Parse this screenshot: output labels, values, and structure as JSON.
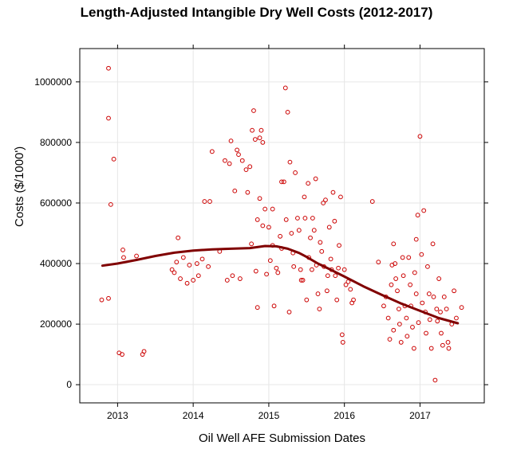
{
  "chart_data": {
    "type": "scatter",
    "title": "Length-Adjusted Intangible Dry Well Costs (2012-2017)",
    "xlabel": "Oil Well AFE Submission Dates",
    "ylabel": "Costs ($/1000')",
    "xlim": [
      2012.5,
      2017.85
    ],
    "ylim": [
      -60000,
      1110000
    ],
    "x_ticks": [
      2013,
      2014,
      2015,
      2016,
      2017
    ],
    "x_tick_labels": [
      "2013",
      "2014",
      "2015",
      "2016",
      "2017"
    ],
    "y_ticks": [
      0,
      200000,
      400000,
      600000,
      800000,
      1000000
    ],
    "y_tick_labels": [
      "0",
      "200000",
      "400000",
      "600000",
      "800000",
      "1000000"
    ],
    "grid": true,
    "colors": {
      "points": "#cc0000",
      "smooth": "#800000",
      "grid": "#e6e6e6"
    },
    "series": [
      {
        "kind": "points",
        "points": [
          [
            2012.79,
            280000
          ],
          [
            2012.88,
            1045000
          ],
          [
            2012.88,
            880000
          ],
          [
            2012.88,
            285000
          ],
          [
            2012.91,
            595000
          ],
          [
            2012.95,
            745000
          ],
          [
            2013.02,
            105000
          ],
          [
            2013.06,
            100000
          ],
          [
            2013.07,
            445000
          ],
          [
            2013.08,
            420000
          ],
          [
            2013.25,
            425000
          ],
          [
            2013.33,
            100000
          ],
          [
            2013.35,
            110000
          ],
          [
            2013.72,
            380000
          ],
          [
            2013.75,
            370000
          ],
          [
            2013.78,
            405000
          ],
          [
            2013.8,
            485000
          ],
          [
            2013.83,
            350000
          ],
          [
            2013.87,
            420000
          ],
          [
            2013.92,
            335000
          ],
          [
            2013.95,
            395000
          ],
          [
            2014.0,
            345000
          ],
          [
            2014.05,
            400000
          ],
          [
            2014.07,
            360000
          ],
          [
            2014.12,
            415000
          ],
          [
            2014.15,
            605000
          ],
          [
            2014.2,
            390000
          ],
          [
            2014.22,
            605000
          ],
          [
            2014.25,
            770000
          ],
          [
            2014.35,
            440000
          ],
          [
            2014.42,
            740000
          ],
          [
            2014.45,
            345000
          ],
          [
            2014.48,
            730000
          ],
          [
            2014.5,
            805000
          ],
          [
            2014.52,
            360000
          ],
          [
            2014.55,
            640000
          ],
          [
            2014.58,
            775000
          ],
          [
            2014.6,
            760000
          ],
          [
            2014.62,
            350000
          ],
          [
            2014.65,
            740000
          ],
          [
            2014.7,
            710000
          ],
          [
            2014.72,
            635000
          ],
          [
            2014.75,
            720000
          ],
          [
            2014.77,
            465000
          ],
          [
            2014.78,
            840000
          ],
          [
            2014.8,
            905000
          ],
          [
            2014.82,
            810000
          ],
          [
            2014.83,
            375000
          ],
          [
            2014.85,
            545000
          ],
          [
            2014.85,
            255000
          ],
          [
            2014.88,
            815000
          ],
          [
            2014.88,
            615000
          ],
          [
            2014.9,
            840000
          ],
          [
            2014.92,
            800000
          ],
          [
            2014.92,
            525000
          ],
          [
            2014.95,
            580000
          ],
          [
            2014.97,
            365000
          ],
          [
            2015.0,
            520000
          ],
          [
            2015.02,
            410000
          ],
          [
            2015.05,
            580000
          ],
          [
            2015.05,
            460000
          ],
          [
            2015.07,
            260000
          ],
          [
            2015.1,
            385000
          ],
          [
            2015.12,
            370000
          ],
          [
            2015.15,
            490000
          ],
          [
            2015.17,
            670000
          ],
          [
            2015.17,
            450000
          ],
          [
            2015.2,
            670000
          ],
          [
            2015.22,
            980000
          ],
          [
            2015.23,
            545000
          ],
          [
            2015.25,
            900000
          ],
          [
            2015.27,
            240000
          ],
          [
            2015.28,
            735000
          ],
          [
            2015.3,
            500000
          ],
          [
            2015.32,
            435000
          ],
          [
            2015.33,
            390000
          ],
          [
            2015.35,
            700000
          ],
          [
            2015.38,
            550000
          ],
          [
            2015.4,
            510000
          ],
          [
            2015.42,
            380000
          ],
          [
            2015.43,
            345000
          ],
          [
            2015.45,
            345000
          ],
          [
            2015.47,
            620000
          ],
          [
            2015.48,
            550000
          ],
          [
            2015.5,
            280000
          ],
          [
            2015.52,
            665000
          ],
          [
            2015.53,
            420000
          ],
          [
            2015.55,
            485000
          ],
          [
            2015.57,
            380000
          ],
          [
            2015.58,
            550000
          ],
          [
            2015.6,
            510000
          ],
          [
            2015.62,
            680000
          ],
          [
            2015.63,
            395000
          ],
          [
            2015.65,
            300000
          ],
          [
            2015.67,
            250000
          ],
          [
            2015.68,
            470000
          ],
          [
            2015.7,
            440000
          ],
          [
            2015.72,
            600000
          ],
          [
            2015.73,
            390000
          ],
          [
            2015.75,
            610000
          ],
          [
            2015.77,
            310000
          ],
          [
            2015.78,
            360000
          ],
          [
            2015.8,
            520000
          ],
          [
            2015.82,
            415000
          ],
          [
            2015.83,
            380000
          ],
          [
            2015.85,
            635000
          ],
          [
            2015.87,
            540000
          ],
          [
            2015.88,
            360000
          ],
          [
            2015.9,
            280000
          ],
          [
            2015.92,
            385000
          ],
          [
            2015.93,
            460000
          ],
          [
            2015.95,
            620000
          ],
          [
            2015.97,
            165000
          ],
          [
            2015.98,
            140000
          ],
          [
            2016.0,
            380000
          ],
          [
            2016.02,
            330000
          ],
          [
            2016.05,
            340000
          ],
          [
            2016.08,
            315000
          ],
          [
            2016.1,
            270000
          ],
          [
            2016.12,
            280000
          ],
          [
            2016.37,
            605000
          ],
          [
            2016.45,
            405000
          ],
          [
            2016.52,
            260000
          ],
          [
            2016.55,
            290000
          ],
          [
            2016.58,
            220000
          ],
          [
            2016.6,
            150000
          ],
          [
            2016.62,
            330000
          ],
          [
            2016.63,
            395000
          ],
          [
            2016.65,
            465000
          ],
          [
            2016.65,
            180000
          ],
          [
            2016.67,
            400000
          ],
          [
            2016.68,
            350000
          ],
          [
            2016.7,
            310000
          ],
          [
            2016.72,
            250000
          ],
          [
            2016.73,
            200000
          ],
          [
            2016.75,
            140000
          ],
          [
            2016.77,
            420000
          ],
          [
            2016.78,
            360000
          ],
          [
            2016.8,
            260000
          ],
          [
            2016.82,
            220000
          ],
          [
            2016.83,
            160000
          ],
          [
            2016.85,
            420000
          ],
          [
            2016.87,
            330000
          ],
          [
            2016.88,
            260000
          ],
          [
            2016.9,
            190000
          ],
          [
            2016.92,
            120000
          ],
          [
            2016.93,
            370000
          ],
          [
            2016.95,
            480000
          ],
          [
            2016.95,
            300000
          ],
          [
            2016.97,
            560000
          ],
          [
            2016.98,
            205000
          ],
          [
            2017.0,
            820000
          ],
          [
            2017.02,
            430000
          ],
          [
            2017.03,
            270000
          ],
          [
            2017.05,
            575000
          ],
          [
            2017.07,
            240000
          ],
          [
            2017.08,
            170000
          ],
          [
            2017.1,
            390000
          ],
          [
            2017.12,
            300000
          ],
          [
            2017.13,
            215000
          ],
          [
            2017.15,
            120000
          ],
          [
            2017.17,
            465000
          ],
          [
            2017.18,
            290000
          ],
          [
            2017.2,
            15000
          ],
          [
            2017.22,
            250000
          ],
          [
            2017.23,
            210000
          ],
          [
            2017.25,
            350000
          ],
          [
            2017.27,
            240000
          ],
          [
            2017.28,
            170000
          ],
          [
            2017.3,
            130000
          ],
          [
            2017.32,
            290000
          ],
          [
            2017.35,
            250000
          ],
          [
            2017.37,
            140000
          ],
          [
            2017.38,
            120000
          ],
          [
            2017.42,
            200000
          ],
          [
            2017.45,
            310000
          ],
          [
            2017.48,
            220000
          ],
          [
            2017.55,
            255000
          ]
        ]
      },
      {
        "kind": "smooth-line",
        "points": [
          [
            2012.8,
            393000
          ],
          [
            2013.0,
            400000
          ],
          [
            2013.25,
            412000
          ],
          [
            2013.5,
            425000
          ],
          [
            2013.75,
            436000
          ],
          [
            2014.0,
            443000
          ],
          [
            2014.25,
            447000
          ],
          [
            2014.5,
            449000
          ],
          [
            2014.75,
            451000
          ],
          [
            2014.95,
            458000
          ],
          [
            2015.1,
            457000
          ],
          [
            2015.25,
            449000
          ],
          [
            2015.4,
            435000
          ],
          [
            2015.5,
            422000
          ],
          [
            2015.65,
            400000
          ],
          [
            2015.8,
            382000
          ],
          [
            2016.0,
            357000
          ],
          [
            2016.25,
            325000
          ],
          [
            2016.5,
            296000
          ],
          [
            2016.75,
            268000
          ],
          [
            2017.0,
            244000
          ],
          [
            2017.25,
            220000
          ],
          [
            2017.5,
            203000
          ]
        ]
      }
    ]
  }
}
